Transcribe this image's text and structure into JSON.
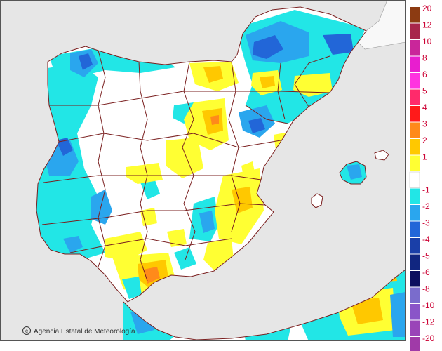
{
  "map": {
    "credit": "Agencia Estatal de Meteorología",
    "colors": {
      "sea": "#e6e6e6",
      "land": "#ffffff",
      "border": "#7a1f1f"
    }
  },
  "legend": {
    "items": [
      {
        "label": "20",
        "color": "#8c3b12"
      },
      {
        "label": "12",
        "color": "#a8264b"
      },
      {
        "label": "10",
        "color": "#c9269a"
      },
      {
        "label": "8",
        "color": "#e81ecf"
      },
      {
        "label": "6",
        "color": "#ff33e0"
      },
      {
        "label": "5",
        "color": "#ff2a6b"
      },
      {
        "label": "4",
        "color": "#ff1a1a"
      },
      {
        "label": "3",
        "color": "#ff8a1a"
      },
      {
        "label": "2",
        "color": "#ffc800"
      },
      {
        "label": "1",
        "color": "#ffff33"
      },
      {
        "label": "",
        "color": "#ffffff"
      },
      {
        "label": "-1",
        "color": "#22e6e6"
      },
      {
        "label": "-2",
        "color": "#2aa6ee"
      },
      {
        "label": "-3",
        "color": "#2266d8"
      },
      {
        "label": "-4",
        "color": "#1a3fa8"
      },
      {
        "label": "-5",
        "color": "#112680"
      },
      {
        "label": "-6",
        "color": "#0c0f5e"
      },
      {
        "label": "-8",
        "color": "#7a6ccc"
      },
      {
        "label": "-10",
        "color": "#8a55c8"
      },
      {
        "label": "-12",
        "color": "#9a44b8"
      },
      {
        "label": "-20",
        "color": "#a03aa8"
      }
    ]
  }
}
